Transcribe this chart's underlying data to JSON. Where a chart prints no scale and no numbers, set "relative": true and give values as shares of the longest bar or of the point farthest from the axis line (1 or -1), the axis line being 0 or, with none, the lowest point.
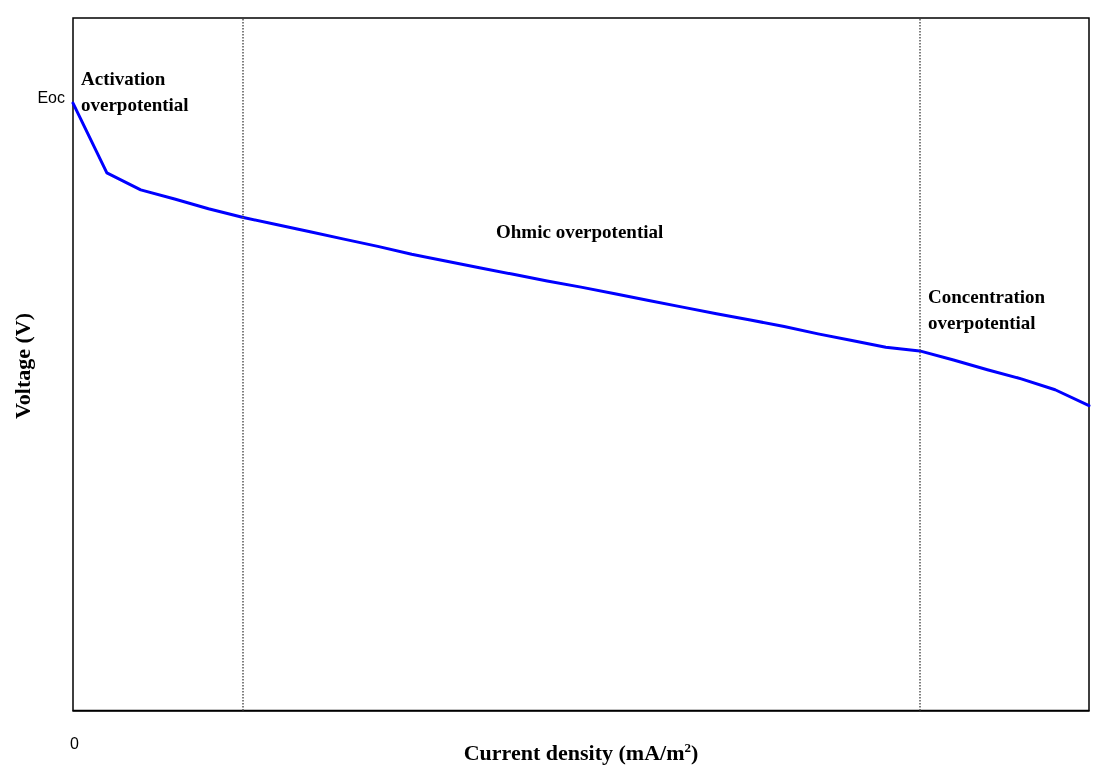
{
  "chart_data": {
    "type": "line",
    "relative": true,
    "xlabel": "Current density (mA/m$^{2}$)",
    "ylabel": "Voltage (V)",
    "categories": [
      null,
      null,
      null,
      null,
      null,
      null,
      null,
      null,
      null,
      null,
      null,
      null,
      null,
      null,
      null,
      null,
      null,
      null,
      null,
      null,
      null,
      null,
      null,
      null,
      null,
      null,
      null,
      null,
      null,
      null,
      null
    ],
    "series": [
      {
        "color": "#0000ff",
        "values": [
          1,
          0.885,
          0.857,
          0.842,
          0.826,
          0.812,
          0.8,
          0.788,
          0.776,
          0.764,
          0.751,
          0.74,
          0.729,
          0.718,
          0.707,
          0.697,
          0.686,
          0.675,
          0.664,
          0.653,
          0.643,
          0.632,
          0.62,
          0.609,
          0.598,
          0.592,
          0.577,
          0.561,
          0.546,
          0.528,
          0.502
        ]
      }
    ],
    "annotations": [
      "Eoc",
      "0",
      "Activation overpotential",
      "Ohmic overpotential",
      "Concentration overpotential"
    ],
    "marker": "none",
    "line_style": "solid",
    "grid": false
  }
}
